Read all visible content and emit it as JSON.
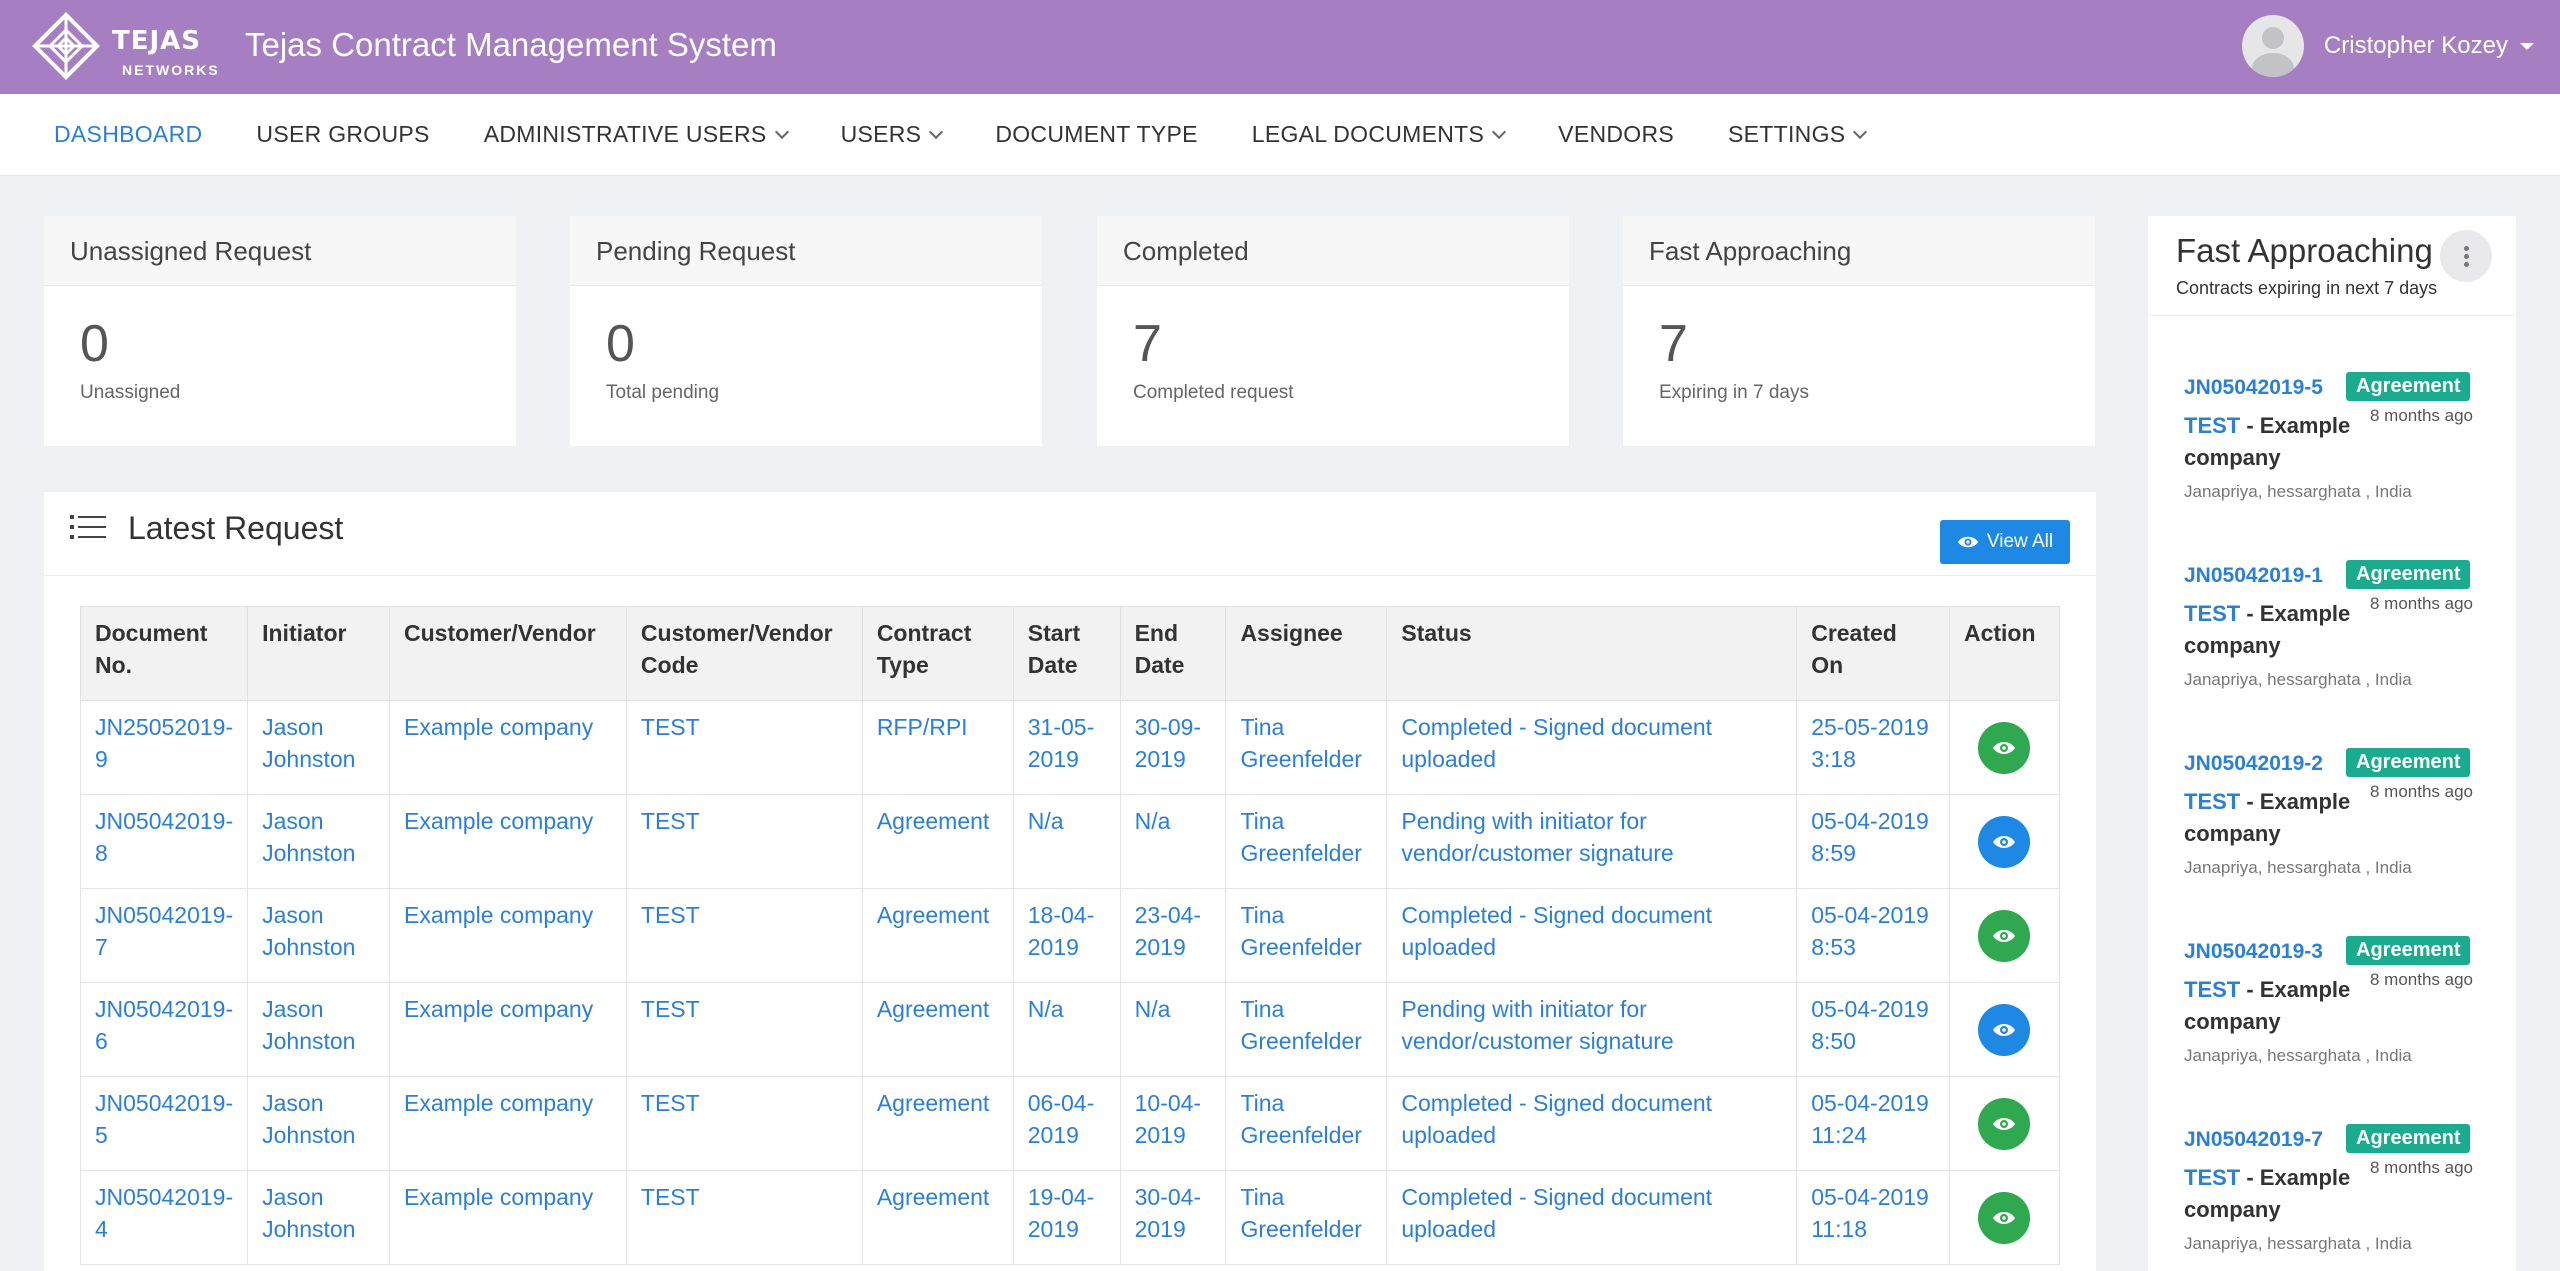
{
  "header": {
    "logo_text": "TEJAS",
    "logo_subtext": "NETWORKS",
    "title": "Tejas Contract Management System",
    "user_name": "Cristopher Kozey"
  },
  "nav": {
    "items": [
      {
        "label": "DASHBOARD",
        "active": true,
        "dropdown": false
      },
      {
        "label": "USER GROUPS",
        "dropdown": false
      },
      {
        "label": "ADMINISTRATIVE USERS",
        "dropdown": true
      },
      {
        "label": "USERS",
        "dropdown": true
      },
      {
        "label": "DOCUMENT TYPE",
        "dropdown": false
      },
      {
        "label": "LEGAL DOCUMENTS",
        "dropdown": true
      },
      {
        "label": "VENDORS",
        "dropdown": false
      },
      {
        "label": "SETTINGS",
        "dropdown": true
      }
    ]
  },
  "stats": [
    {
      "title": "Unassigned Request",
      "value": "0",
      "label": "Unassigned"
    },
    {
      "title": "Pending Request",
      "value": "0",
      "label": "Total pending"
    },
    {
      "title": "Completed",
      "value": "7",
      "label": "Completed request"
    },
    {
      "title": "Fast Approaching",
      "value": "7",
      "label": "Expiring in 7 days"
    }
  ],
  "latest": {
    "title": "Latest Request",
    "view_all_label": "View All",
    "columns": [
      "Document No.",
      "Initiator",
      "Customer/Vendor",
      "Customer/Vendor Code",
      "Contract Type",
      "Start Date",
      "End Date",
      "Assignee",
      "Status",
      "Created On",
      "Action"
    ],
    "rows": [
      {
        "doc": "JN25052019-9",
        "initiator": "Jason Johnston",
        "customer": "Example company",
        "code": "TEST",
        "type": "RFP/RPI",
        "start": "31-05-2019",
        "end": "30-09-2019",
        "assignee": "Tina Greenfelder",
        "status": "Completed - Signed document uploaded",
        "created": "25-05-2019 3:18",
        "action_color": "green"
      },
      {
        "doc": "JN05042019-8",
        "initiator": "Jason Johnston",
        "customer": "Example company",
        "code": "TEST",
        "type": "Agreement",
        "start": "N/a",
        "end": "N/a",
        "assignee": "Tina Greenfelder",
        "status": "Pending with initiator for vendor/customer signature",
        "created": "05-04-2019 8:59",
        "action_color": "blue"
      },
      {
        "doc": "JN05042019-7",
        "initiator": "Jason Johnston",
        "customer": "Example company",
        "code": "TEST",
        "type": "Agreement",
        "start": "18-04-2019",
        "end": "23-04-2019",
        "assignee": "Tina Greenfelder",
        "status": "Completed - Signed document uploaded",
        "created": "05-04-2019 8:53",
        "action_color": "green"
      },
      {
        "doc": "JN05042019-6",
        "initiator": "Jason Johnston",
        "customer": "Example company",
        "code": "TEST",
        "type": "Agreement",
        "start": "N/a",
        "end": "N/a",
        "assignee": "Tina Greenfelder",
        "status": "Pending with initiator for vendor/customer signature",
        "created": "05-04-2019 8:50",
        "action_color": "blue"
      },
      {
        "doc": "JN05042019-5",
        "initiator": "Jason Johnston",
        "customer": "Example company",
        "code": "TEST",
        "type": "Agreement",
        "start": "06-04-2019",
        "end": "10-04-2019",
        "assignee": "Tina Greenfelder",
        "status": "Completed - Signed document uploaded",
        "created": "05-04-2019 11:24",
        "action_color": "green"
      },
      {
        "doc": "JN05042019-4",
        "initiator": "Jason Johnston",
        "customer": "Example company",
        "code": "TEST",
        "type": "Agreement",
        "start": "19-04-2019",
        "end": "30-04-2019",
        "assignee": "Tina Greenfelder",
        "status": "Completed - Signed document uploaded",
        "created": "05-04-2019 11:18",
        "action_color": "green"
      }
    ]
  },
  "fast": {
    "title": "Fast Approaching",
    "subtitle": "Contracts expiring in next 7 days",
    "items": [
      {
        "doc": "JN05042019-5",
        "badge": "Agreement",
        "ago": "8 months ago",
        "code": "TEST",
        "desc": " - Example company",
        "location": "Janapriya, hessarghata , India"
      },
      {
        "doc": "JN05042019-1",
        "badge": "Agreement",
        "ago": "8 months ago",
        "code": "TEST",
        "desc": " - Example company",
        "location": "Janapriya, hessarghata , India"
      },
      {
        "doc": "JN05042019-2",
        "badge": "Agreement",
        "ago": "8 months ago",
        "code": "TEST",
        "desc": " - Example company",
        "location": "Janapriya, hessarghata , India"
      },
      {
        "doc": "JN05042019-3",
        "badge": "Agreement",
        "ago": "8 months ago",
        "code": "TEST",
        "desc": " - Example company",
        "location": "Janapriya, hessarghata , India"
      },
      {
        "doc": "JN05042019-7",
        "badge": "Agreement",
        "ago": "8 months ago",
        "code": "TEST",
        "desc": " - Example company",
        "location": "Janapriya, hessarghata , India"
      }
    ]
  },
  "colors": {
    "header_bg": "#a67fc3",
    "link": "#2c7fd6",
    "badge": "#1bab8f",
    "action_green": "#2fa84f",
    "action_blue": "#1e88e5"
  }
}
